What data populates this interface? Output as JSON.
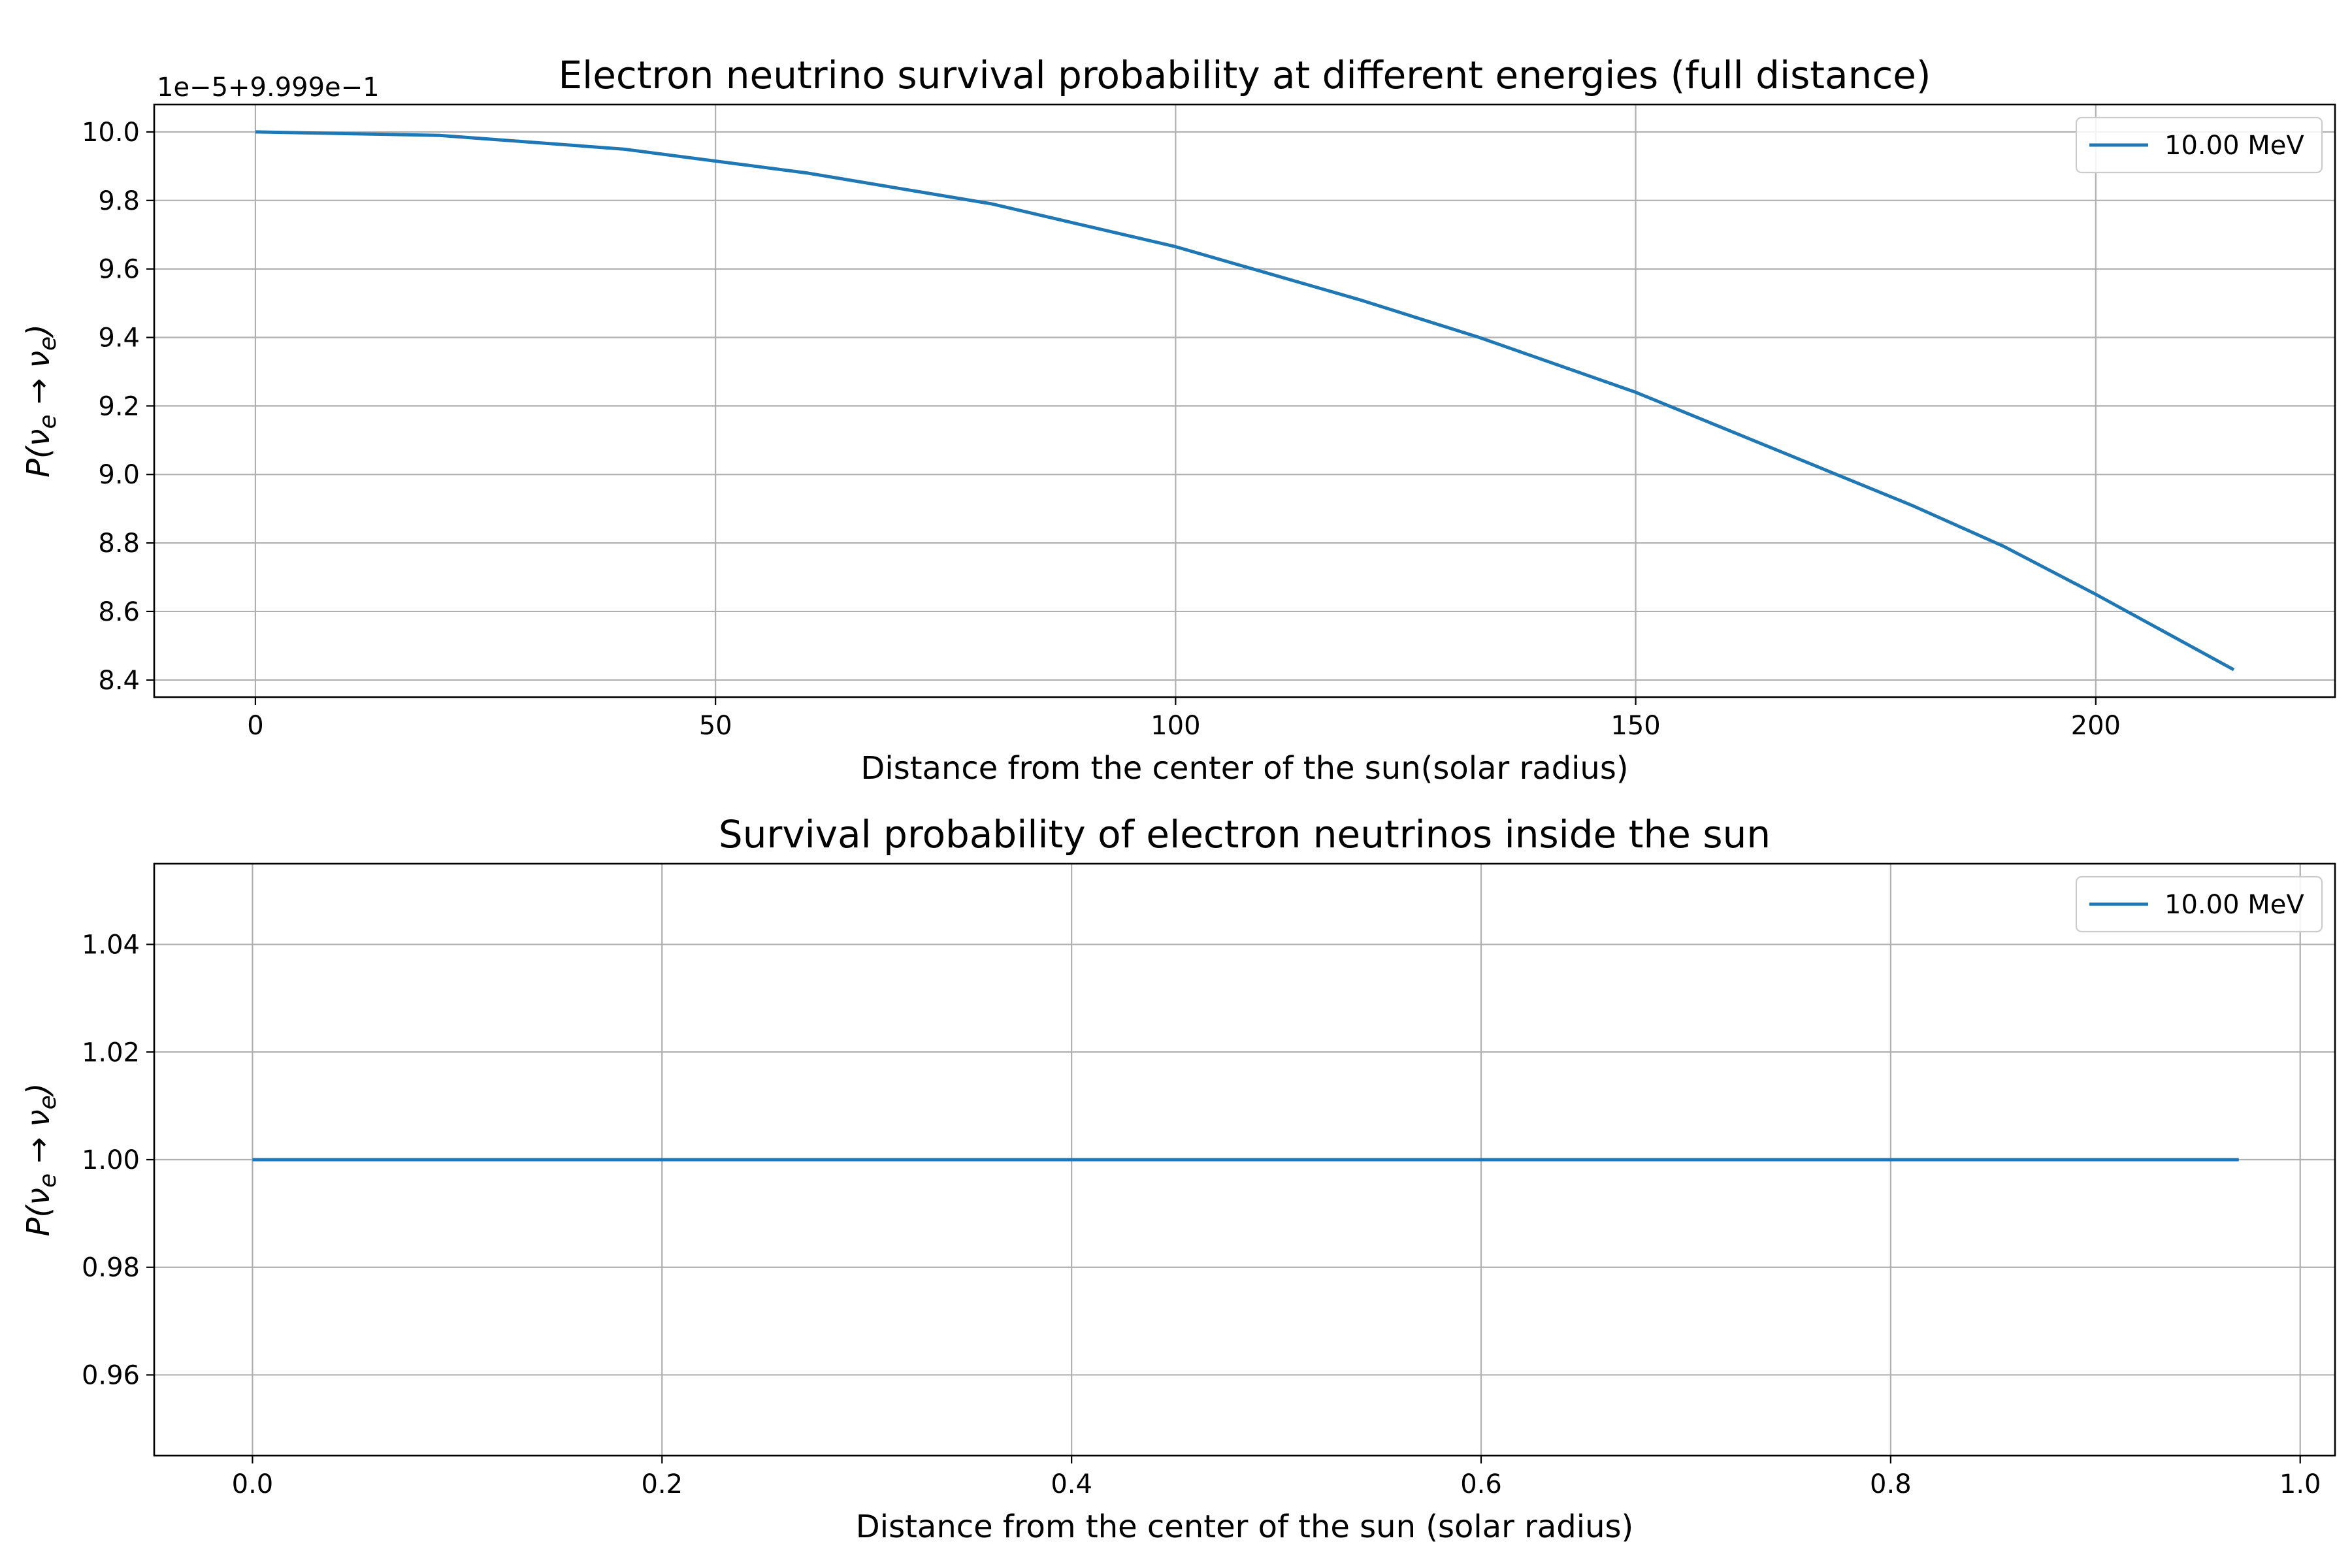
{
  "chart_data": [
    {
      "type": "line",
      "title": "Electron neutrino survival probability at different energies (full distance)",
      "xlabel": "Distance from the center of the sun(solar radius)",
      "ylabel_parts": [
        "P(",
        "ν",
        "e",
        " → ",
        "ν",
        "e",
        ")"
      ],
      "offset_text": "1e−5+9.999e−1",
      "xlim": [
        -11,
        226
      ],
      "ylim": [
        8.35,
        10.08
      ],
      "xticks": [
        0,
        50,
        100,
        150,
        200
      ],
      "xtick_labels": [
        "0",
        "50",
        "100",
        "150",
        "200"
      ],
      "yticks": [
        8.4,
        8.6,
        8.8,
        9.0,
        9.2,
        9.4,
        9.6,
        9.8,
        10.0
      ],
      "ytick_labels": [
        "8.4",
        "8.6",
        "8.8",
        "9.0",
        "9.2",
        "9.4",
        "9.6",
        "9.8",
        "10.0"
      ],
      "grid": true,
      "legend_position": "top-right",
      "series": [
        {
          "name": "10.00 MeV",
          "color": "#1f77b4",
          "x": [
            0,
            20,
            40,
            60,
            80,
            100,
            120,
            133,
            150,
            170,
            180,
            190,
            200,
            215
          ],
          "y": [
            10.0,
            9.99,
            9.95,
            9.88,
            9.79,
            9.665,
            9.51,
            9.4,
            9.24,
            9.02,
            8.91,
            8.79,
            8.65,
            8.43
          ]
        }
      ]
    },
    {
      "type": "line",
      "title": "Survival probability of electron neutrinos inside the sun",
      "xlabel": "Distance from the center of the sun (solar radius)",
      "ylabel_parts": [
        "P(",
        "ν",
        "e",
        " → ",
        "ν",
        "e",
        ")"
      ],
      "offset_text": "",
      "xlim": [
        -0.048,
        1.017
      ],
      "ylim": [
        0.945,
        1.055
      ],
      "xticks": [
        0.0,
        0.2,
        0.4,
        0.6,
        0.8,
        1.0
      ],
      "xtick_labels": [
        "0.0",
        "0.2",
        "0.4",
        "0.6",
        "0.8",
        "1.0"
      ],
      "yticks": [
        0.96,
        0.98,
        1.0,
        1.02,
        1.04
      ],
      "ytick_labels": [
        "0.96",
        "0.98",
        "1.00",
        "1.02",
        "1.04"
      ],
      "grid": true,
      "legend_position": "top-right",
      "series": [
        {
          "name": "10.00 MeV",
          "color": "#1f77b4",
          "x": [
            0.0,
            0.97
          ],
          "y": [
            1.0,
            1.0
          ]
        }
      ]
    }
  ]
}
